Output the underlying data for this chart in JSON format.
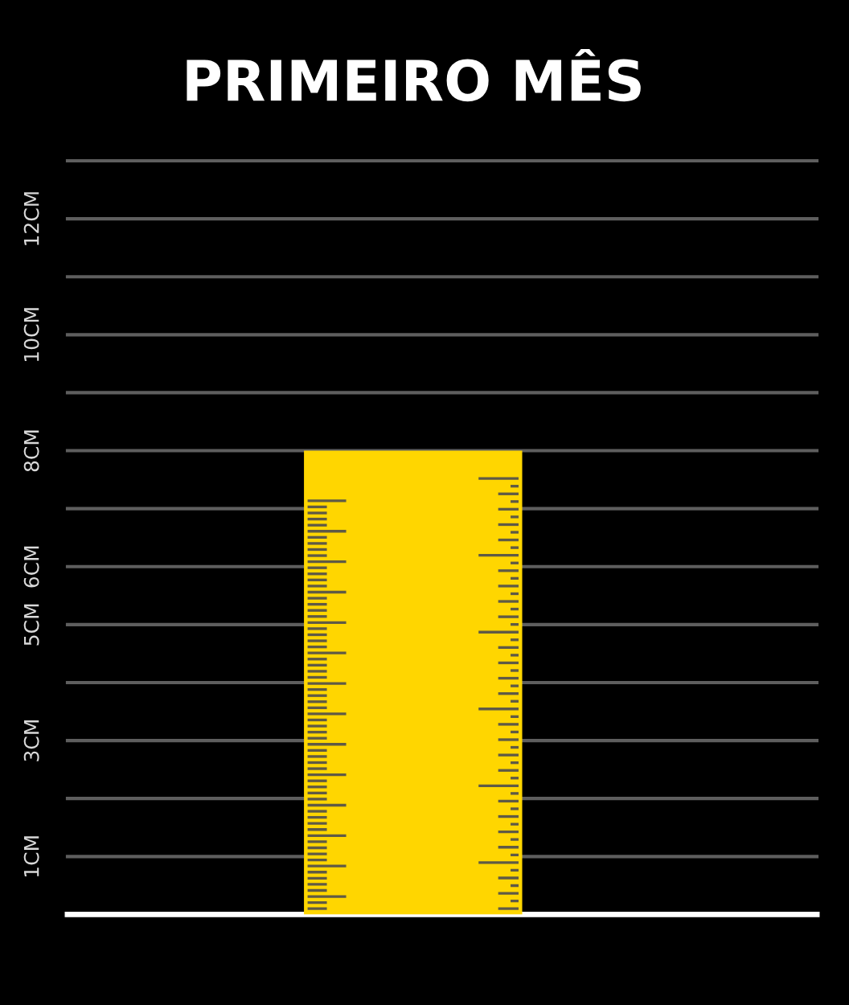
{
  "chart_data": {
    "type": "bar",
    "title": "PRIMEIRO MÊS",
    "categories": [
      null
    ],
    "values": [
      8
    ],
    "color": "#ffd600",
    "ylim": [
      0,
      13
    ],
    "yticks": [
      {
        "value": 0,
        "label": null
      },
      {
        "value": 1,
        "label": "1CM"
      },
      {
        "value": 2,
        "label": null
      },
      {
        "value": 3,
        "label": "3CM"
      },
      {
        "value": 4,
        "label": null
      },
      {
        "value": 5,
        "label": "5CM"
      },
      {
        "value": 6,
        "label": "6CM"
      },
      {
        "value": 7,
        "label": null
      },
      {
        "value": 8,
        "label": "8CM"
      },
      {
        "value": 9,
        "label": null
      },
      {
        "value": 10,
        "label": "10CM"
      },
      {
        "value": 11,
        "label": null
      },
      {
        "value": 12,
        "label": "12CM"
      },
      {
        "value": 13,
        "label": null
      }
    ],
    "grid": "y",
    "tick_labels": "y"
  }
}
